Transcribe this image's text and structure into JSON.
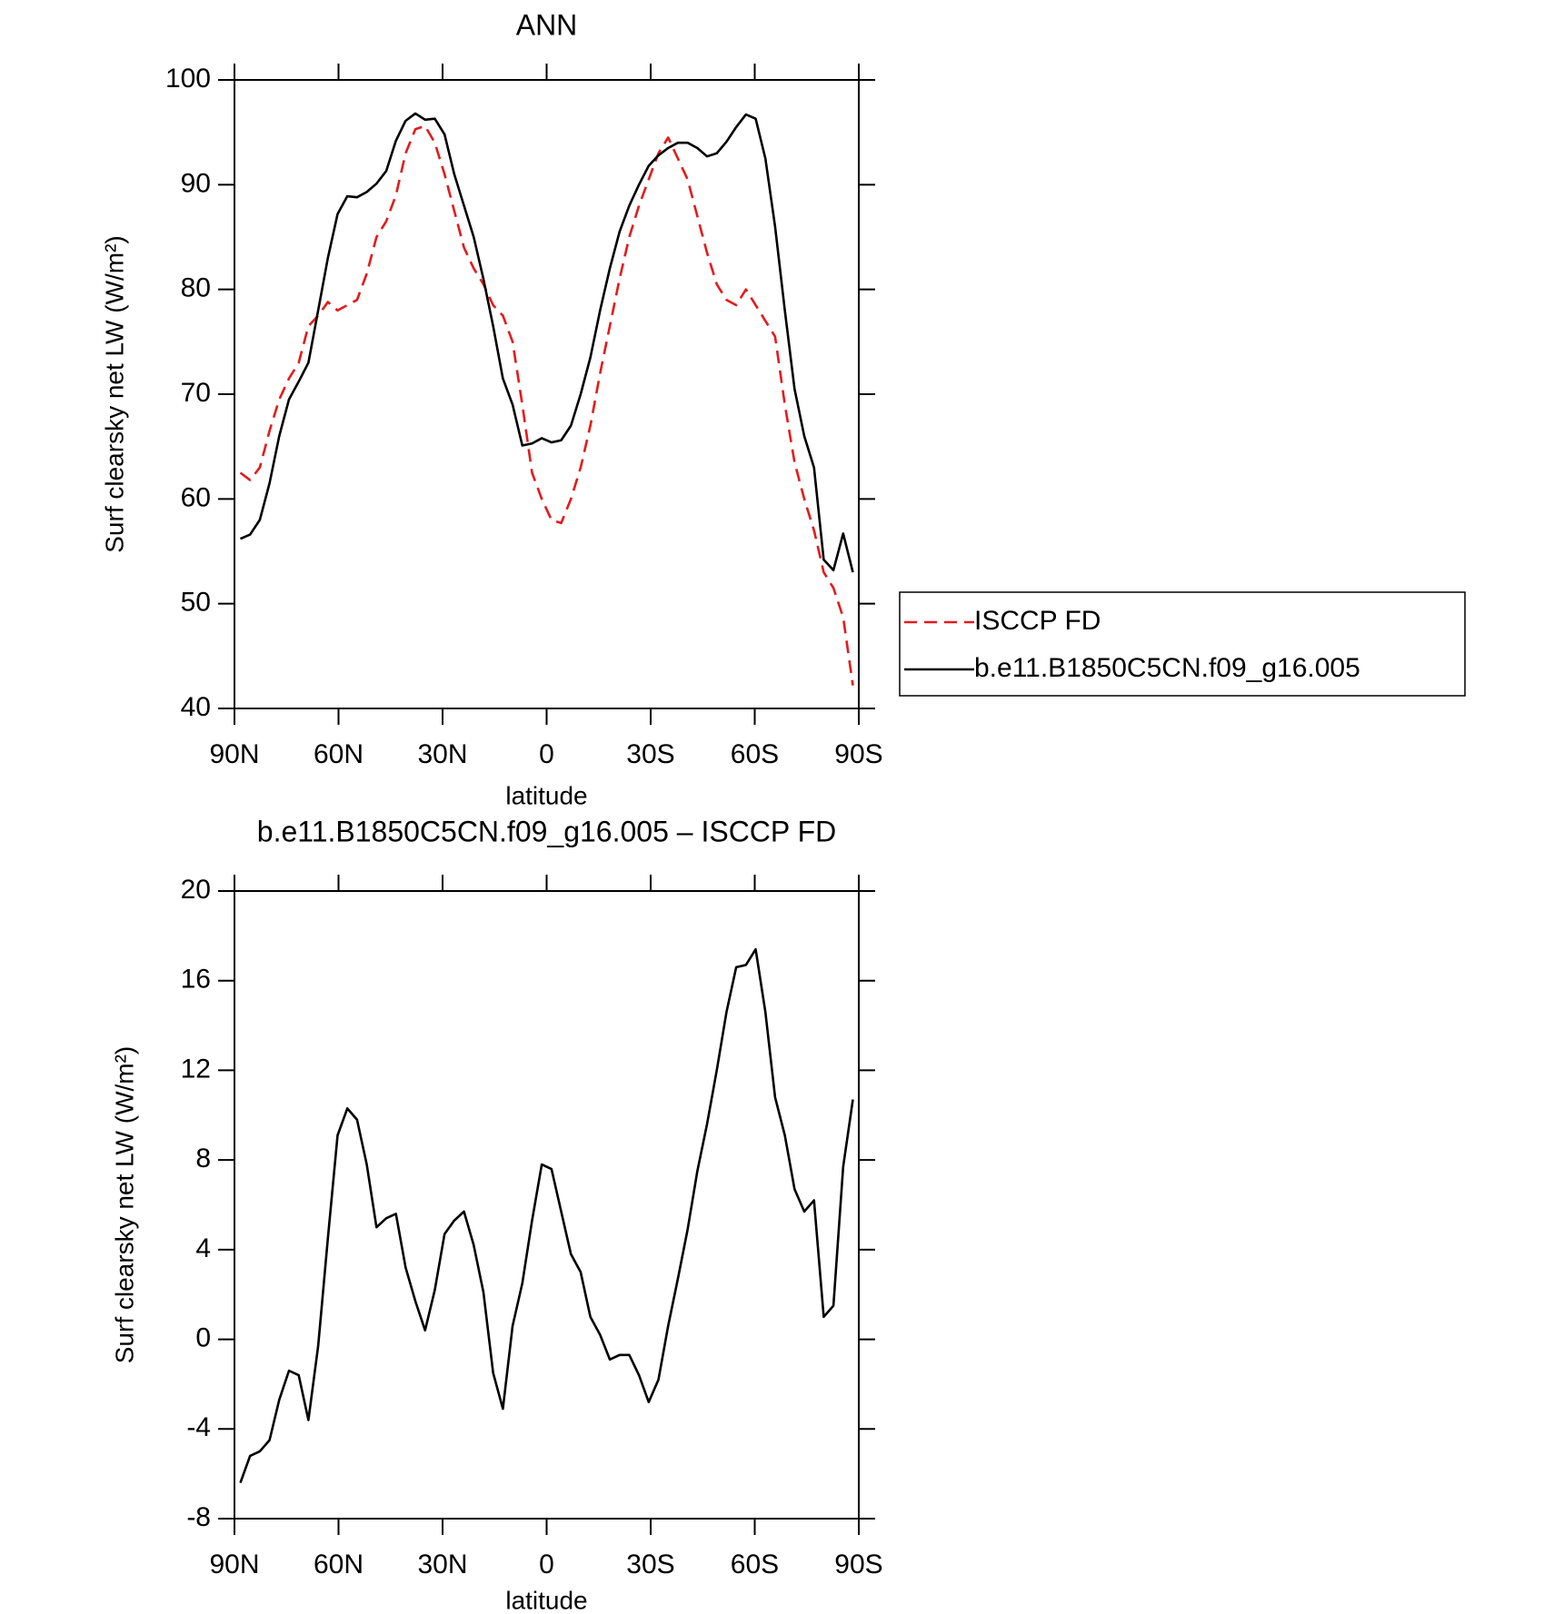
{
  "chart_data": [
    {
      "type": "line",
      "title": "ANN",
      "xlabel": "latitude",
      "ylabel": "Surf clearsky net LW (W/m²)",
      "x": [
        88.3,
        85.5,
        82.69,
        79.89,
        77.09,
        74.28,
        71.48,
        68.68,
        65.87,
        63.07,
        60.27,
        57.46,
        54.66,
        51.86,
        49.05,
        46.25,
        43.45,
        40.65,
        37.84,
        35.04,
        32.24,
        29.43,
        26.63,
        23.83,
        21.02,
        18.22,
        15.42,
        12.61,
        9.81,
        7.01,
        4.2,
        1.4,
        -1.4,
        -4.2,
        -7.01,
        -9.81,
        -12.61,
        -15.42,
        -18.22,
        -21.02,
        -23.83,
        -26.63,
        -29.43,
        -32.24,
        -35.04,
        -37.84,
        -40.65,
        -43.45,
        -46.25,
        -49.05,
        -51.86,
        -54.66,
        -57.46,
        -60.27,
        -63.07,
        -65.87,
        -68.68,
        -71.48,
        -74.28,
        -77.09,
        -79.89,
        -82.69,
        -85.5,
        -88.3
      ],
      "series": [
        {
          "name": "ISCCP FD",
          "color": "#e41a1c",
          "dashed": true,
          "values": [
            62.5,
            61.8,
            63,
            66.5,
            69.5,
            71.5,
            73,
            76.5,
            77.5,
            78.8,
            78,
            78.5,
            79,
            81.5,
            85,
            86.5,
            89,
            93,
            95.3,
            95.6,
            94,
            91,
            87.5,
            84,
            82,
            80.5,
            78.5,
            77.5,
            75,
            69,
            62.5,
            60,
            58,
            57.7,
            60,
            63,
            67,
            72,
            76.5,
            81,
            85,
            88,
            90.5,
            93,
            94.5,
            92.5,
            90.5,
            87,
            83.5,
            80.5,
            79,
            78.5,
            80,
            78.5,
            77,
            75.5,
            69,
            63.5,
            60,
            57,
            53,
            51.5,
            48.7,
            42.2
          ]
        },
        {
          "name": "b.e11.B1850C5CN.f09_g16.005",
          "color": "#000000",
          "dashed": false,
          "values": [
            56.2,
            56.6,
            58,
            61.5,
            66,
            69.5,
            71.2,
            73,
            78,
            83,
            87.2,
            88.9,
            88.8,
            89.3,
            90.1,
            91.3,
            94.2,
            96.1,
            96.8,
            96.2,
            96.3,
            94.8,
            91,
            88,
            85,
            81,
            76.5,
            71.5,
            69,
            65.1,
            65.3,
            65.8,
            65.4,
            65.6,
            67,
            70,
            73.5,
            78,
            82,
            85.5,
            88,
            90,
            91.8,
            92.8,
            93.5,
            94,
            94,
            93.5,
            92.7,
            93,
            94.1,
            95.5,
            96.7,
            96.3,
            92.5,
            86,
            78,
            70.5,
            66,
            63,
            54.2,
            53.2,
            56.7,
            53
          ]
        }
      ],
      "xlim": [
        90,
        -90
      ],
      "xticks": [
        {
          "value": 90,
          "label": "90N"
        },
        {
          "value": 60,
          "label": "60N"
        },
        {
          "value": 30,
          "label": "30N"
        },
        0,
        {
          "value": -30,
          "label": "30S"
        },
        {
          "value": -60,
          "label": "60S"
        },
        {
          "value": -90,
          "label": "90S"
        }
      ],
      "ylim": [
        40,
        100
      ],
      "yticks": [
        40,
        50,
        60,
        70,
        80,
        90,
        100
      ],
      "legend": "right"
    },
    {
      "type": "line",
      "title": "b.e11.B1850C5CN.f09_g16.005 – ISCCP FD",
      "xlabel": "latitude",
      "ylabel": "Surf clearsky net LW (W/m²)",
      "x": [
        88.3,
        85.5,
        82.69,
        79.89,
        77.09,
        74.28,
        71.48,
        68.68,
        65.87,
        63.07,
        60.27,
        57.46,
        54.66,
        51.86,
        49.05,
        46.25,
        43.45,
        40.65,
        37.84,
        35.04,
        32.24,
        29.43,
        26.63,
        23.83,
        21.02,
        18.22,
        15.42,
        12.61,
        9.81,
        7.01,
        4.2,
        1.4,
        -1.4,
        -4.2,
        -7.01,
        -9.81,
        -12.61,
        -15.42,
        -18.22,
        -21.02,
        -23.83,
        -26.63,
        -29.43,
        -32.24,
        -35.04,
        -37.84,
        -40.65,
        -43.45,
        -46.25,
        -49.05,
        -51.86,
        -54.66,
        -57.46,
        -60.27,
        -63.07,
        -65.87,
        -68.68,
        -71.48,
        -74.28,
        -77.09,
        -79.89,
        -82.69,
        -85.5,
        -88.3
      ],
      "series": [
        {
          "color": "#000000",
          "dashed": false,
          "values": [
            -6.4,
            -5.2,
            -5,
            -4.5,
            -2.7,
            -1.4,
            -1.6,
            -3.6,
            -0.3,
            4.5,
            9.1,
            10.3,
            9.8,
            7.8,
            5,
            5.4,
            5.6,
            3.2,
            1.7,
            0.4,
            2.2,
            4.7,
            5.3,
            5.7,
            4.2,
            2.1,
            -1.5,
            -3.1,
            0.6,
            2.5,
            5.3,
            7.8,
            7.6,
            5.7,
            3.8,
            3,
            1,
            0.2,
            -0.9,
            -0.7,
            -0.7,
            -1.6,
            -2.8,
            -1.8,
            0.6,
            2.7,
            4.9,
            7.5,
            9.6,
            12,
            14.6,
            16.6,
            16.7,
            17.4,
            14.6,
            10.8,
            9.1,
            6.7,
            5.7,
            6.2,
            1,
            1.5,
            7.7,
            10.7
          ]
        }
      ],
      "xlim": [
        90,
        -90
      ],
      "xticks": [
        {
          "value": 90,
          "label": "90N"
        },
        {
          "value": 60,
          "label": "60N"
        },
        {
          "value": 30,
          "label": "30N"
        },
        0,
        {
          "value": -30,
          "label": "30S"
        },
        {
          "value": -60,
          "label": "60S"
        },
        {
          "value": -90,
          "label": "90S"
        }
      ],
      "ylim": [
        -8,
        20
      ],
      "yticks": [
        -8,
        -4,
        0,
        4,
        8,
        12,
        16,
        20
      ]
    }
  ]
}
